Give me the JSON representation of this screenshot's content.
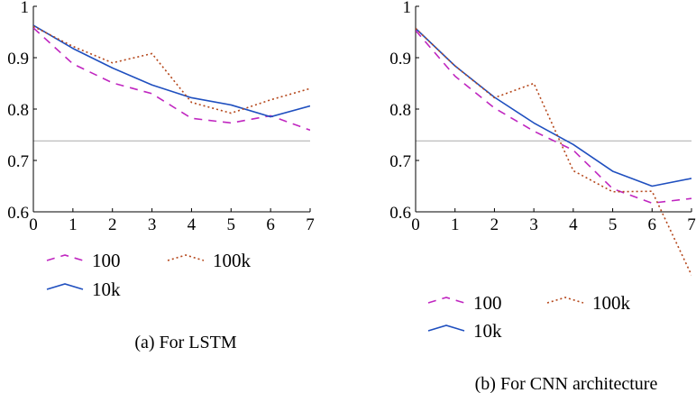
{
  "colors": {
    "series_100": "#c026c0",
    "series_10k": "#1f4fbf",
    "series_100k": "#b5471b",
    "reference_line": "#bdbdbd"
  },
  "chart_data": [
    {
      "type": "line",
      "caption": "(a) For LSTM",
      "x": [
        0,
        1,
        2,
        3,
        4,
        5,
        6,
        7
      ],
      "xlim": [
        0,
        7
      ],
      "ylim": [
        0.6,
        1
      ],
      "xticks": [
        "0",
        "1",
        "2",
        "3",
        "4",
        "5",
        "6",
        "7"
      ],
      "yticks": [
        0.6,
        0.7,
        0.8,
        0.9,
        1
      ],
      "ytick_labels": [
        "0.6",
        "0.7",
        "0.8",
        "0.9",
        "1"
      ],
      "grid": false,
      "legend_position": "bottom",
      "reference_line_y": 0.738,
      "series": [
        {
          "name": "100",
          "style": "dashed",
          "color": "#c026c0",
          "values": [
            0.958,
            0.888,
            0.851,
            0.83,
            0.782,
            0.773,
            0.787,
            0.759
          ]
        },
        {
          "name": "10k",
          "style": "solid",
          "color": "#1f4fbf",
          "values": [
            0.963,
            0.918,
            0.88,
            0.847,
            0.822,
            0.808,
            0.785,
            0.806
          ]
        },
        {
          "name": "100k",
          "style": "dotted",
          "color": "#b5471b",
          "values": [
            0.961,
            0.922,
            0.89,
            0.908,
            0.813,
            0.792,
            0.818,
            0.84
          ]
        }
      ]
    },
    {
      "type": "line",
      "caption": "(b) For CNN architecture",
      "x": [
        0,
        1,
        2,
        3,
        4,
        5,
        6,
        7
      ],
      "xlim": [
        0,
        7
      ],
      "ylim": [
        0.6,
        1
      ],
      "xticks": [
        "0",
        "1",
        "2",
        "3",
        "4",
        "5",
        "6",
        "7"
      ],
      "yticks": [
        0.6,
        0.7,
        0.8,
        0.9,
        1
      ],
      "ytick_labels": [
        "0.6",
        "0.7",
        "0.8",
        "0.9",
        "1"
      ],
      "grid": false,
      "legend_position": "bottom",
      "reference_line_y": 0.738,
      "series": [
        {
          "name": "100",
          "style": "dashed",
          "color": "#c026c0",
          "values": [
            0.953,
            0.864,
            0.802,
            0.757,
            0.72,
            0.645,
            0.617,
            0.626
          ]
        },
        {
          "name": "10k",
          "style": "solid",
          "color": "#1f4fbf",
          "values": [
            0.957,
            0.884,
            0.823,
            0.773,
            0.731,
            0.679,
            0.65,
            0.665
          ]
        },
        {
          "name": "100k",
          "style": "dotted",
          "color": "#b5471b",
          "values": [
            0.957,
            0.884,
            0.822,
            0.85,
            0.68,
            0.639,
            0.64,
            0.477
          ]
        }
      ]
    }
  ]
}
